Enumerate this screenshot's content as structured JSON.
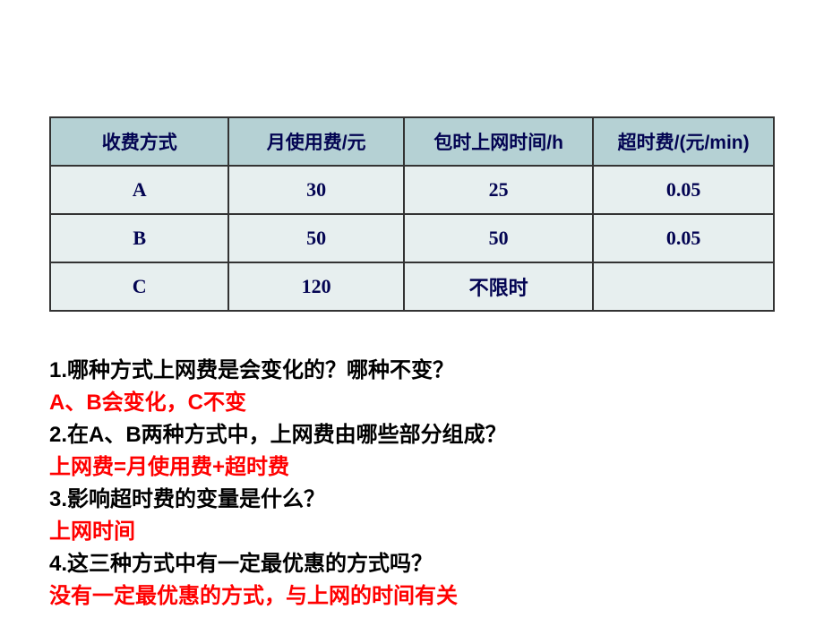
{
  "table": {
    "headers": [
      "收费方式",
      "月使用费/元",
      "包时上网时间/h",
      "超时费/(元/min)"
    ],
    "rows": [
      [
        "A",
        "30",
        "25",
        "0.05"
      ],
      [
        "B",
        "50",
        "50",
        "0.05"
      ],
      [
        "C",
        "120",
        "不限时",
        ""
      ]
    ]
  },
  "qa": {
    "q1": "1.哪种方式上网费是会变化的？哪种不变？",
    "a1": "A、B会变化，C不变",
    "q2": "2.在A、B两种方式中，上网费由哪些部分组成？",
    "a2": "上网费=月使用费+超时费",
    "q3": "3.影响超时费的变量是什么？",
    "a3": "上网时间",
    "q4": "4.这三种方式中有一定最优惠的方式吗？",
    "a4": "没有一定最优惠的方式，与上网的时间有关"
  }
}
